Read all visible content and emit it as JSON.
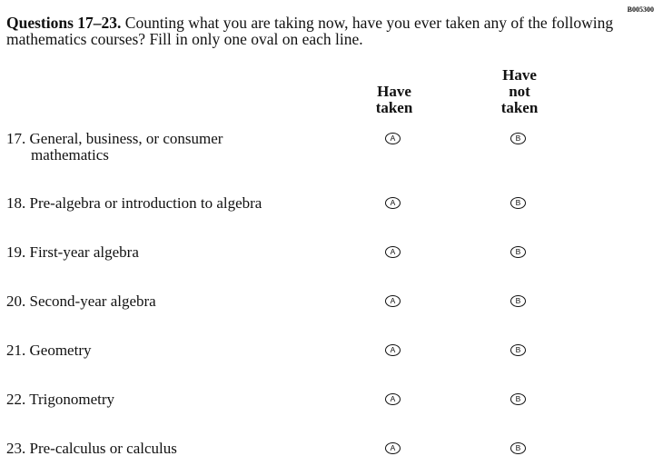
{
  "item_code": "B005300",
  "intro": {
    "lead": "Questions 17–23.",
    "text": " Counting what you are taking now, have you ever taken any of the following mathematics courses? Fill in only one oval on each line."
  },
  "columns": [
    {
      "lines": [
        "Have",
        "taken"
      ]
    },
    {
      "lines": [
        "Have",
        "not",
        "taken"
      ]
    }
  ],
  "questions": [
    {
      "label": "17. General, business, or consumer",
      "cont": "mathematics",
      "options": [
        "A",
        "B"
      ]
    },
    {
      "label": "18. Pre-algebra or introduction to algebra",
      "options": [
        "A",
        "B"
      ]
    },
    {
      "label": "19. First-year algebra",
      "options": [
        "A",
        "B"
      ]
    },
    {
      "label": "20. Second-year algebra",
      "options": [
        "A",
        "B"
      ]
    },
    {
      "label": "21. Geometry",
      "options": [
        "A",
        "B"
      ]
    },
    {
      "label": "22. Trigonometry",
      "options": [
        "A",
        "B"
      ]
    },
    {
      "label": "23. Pre-calculus or calculus",
      "options": [
        "A",
        "B"
      ]
    }
  ]
}
